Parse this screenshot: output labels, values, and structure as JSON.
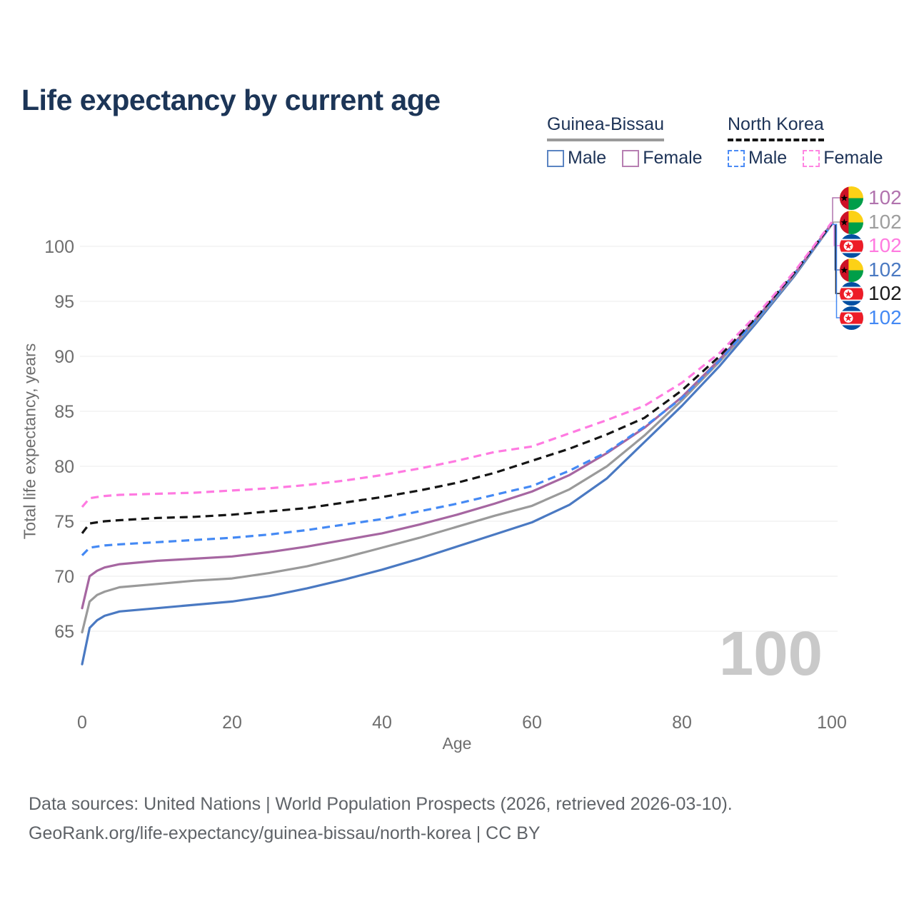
{
  "title": "Life expectancy by current age",
  "watermark": "100",
  "legend": {
    "groups": [
      {
        "country": "Guinea-Bissau",
        "line_style": "solid",
        "underline_color": "#9a9a9a",
        "items": [
          {
            "label": "Male",
            "color": "#5b84c2",
            "dashed": false
          },
          {
            "label": "Female",
            "color": "#b77fb2",
            "dashed": false
          }
        ]
      },
      {
        "country": "North Korea",
        "line_style": "dashed",
        "underline_color": "#161616",
        "items": [
          {
            "label": "Male",
            "color": "#4b8bf5",
            "dashed": true
          },
          {
            "label": "Female",
            "color": "#ff85e2",
            "dashed": true
          }
        ]
      }
    ]
  },
  "footer": {
    "line1": "Data sources: United Nations | World Population Prospects (2026, retrieved 2026-03-10).",
    "line2": "GeoRank.org/life-expectancy/guinea-bissau/north-korea | CC BY"
  },
  "chart_data": {
    "type": "line",
    "title": "Life expectancy by current age",
    "xlabel": "Age",
    "ylabel": "Total life expectancy, years",
    "xlim": [
      0,
      100
    ],
    "ylim": [
      61,
      103
    ],
    "xticks": [
      0,
      20,
      40,
      60,
      80,
      100
    ],
    "yticks": [
      65,
      70,
      75,
      80,
      85,
      90,
      95,
      100
    ],
    "grid": "horizontal",
    "legend_position": "top-right",
    "current_frame_age": "100",
    "x": [
      0,
      1,
      2,
      3,
      5,
      10,
      15,
      20,
      25,
      30,
      35,
      40,
      45,
      50,
      55,
      60,
      65,
      70,
      75,
      80,
      85,
      90,
      95,
      100
    ],
    "series": [
      {
        "name": "Guinea-Bissau Male",
        "color": "#4a79c2",
        "dashed": false,
        "values": [
          62.0,
          65.3,
          66.0,
          66.4,
          66.8,
          67.1,
          67.4,
          67.7,
          68.2,
          68.9,
          69.7,
          70.6,
          71.6,
          72.7,
          73.8,
          74.9,
          76.5,
          78.9,
          82.2,
          85.5,
          89.1,
          93.1,
          97.3,
          102.0
        ]
      },
      {
        "name": "Guinea-Bissau Total",
        "color": "#9a9a9a",
        "dashed": false,
        "values": [
          64.9,
          67.7,
          68.3,
          68.6,
          69.0,
          69.3,
          69.6,
          69.8,
          70.3,
          70.9,
          71.7,
          72.6,
          73.5,
          74.5,
          75.5,
          76.4,
          77.9,
          80.0,
          82.8,
          86.0,
          89.5,
          93.3,
          97.4,
          102.0
        ]
      },
      {
        "name": "Guinea-Bissau Female",
        "color": "#a666a1",
        "dashed": false,
        "values": [
          67.1,
          70.0,
          70.5,
          70.8,
          71.1,
          71.4,
          71.6,
          71.8,
          72.2,
          72.7,
          73.3,
          73.9,
          74.7,
          75.6,
          76.6,
          77.7,
          79.2,
          81.2,
          83.5,
          86.3,
          89.7,
          93.5,
          97.5,
          102.1
        ]
      },
      {
        "name": "North Korea Male",
        "color": "#4489f4",
        "dashed": true,
        "values": [
          71.9,
          72.6,
          72.7,
          72.8,
          72.9,
          73.1,
          73.3,
          73.5,
          73.8,
          74.2,
          74.7,
          75.2,
          75.9,
          76.6,
          77.4,
          78.2,
          79.6,
          81.3,
          83.6,
          86.2,
          89.6,
          93.4,
          97.5,
          102.0
        ]
      },
      {
        "name": "North Korea Total",
        "color": "#151515",
        "dashed": true,
        "values": [
          73.9,
          74.8,
          74.9,
          75.0,
          75.1,
          75.3,
          75.4,
          75.6,
          75.9,
          76.2,
          76.7,
          77.2,
          77.8,
          78.5,
          79.4,
          80.5,
          81.6,
          82.9,
          84.4,
          86.9,
          90.0,
          93.6,
          97.6,
          102.1
        ]
      },
      {
        "name": "North Korea Female",
        "color": "#ff7ae1",
        "dashed": true,
        "values": [
          76.3,
          77.1,
          77.2,
          77.3,
          77.4,
          77.5,
          77.6,
          77.8,
          78.0,
          78.3,
          78.7,
          79.2,
          79.8,
          80.5,
          81.3,
          81.8,
          83.0,
          84.2,
          85.5,
          87.6,
          90.3,
          93.8,
          97.7,
          102.2
        ]
      }
    ],
    "end_labels": [
      {
        "series": "Guinea-Bissau Female",
        "flag": "guinea-bissau",
        "value": "102",
        "color": "#b173ae"
      },
      {
        "series": "Guinea-Bissau Total",
        "flag": "guinea-bissau",
        "value": "102",
        "color": "#9e9e9e"
      },
      {
        "series": "North Korea Female",
        "flag": "north-korea",
        "value": "102",
        "color": "#ff7be0"
      },
      {
        "series": "Guinea-Bissau Male",
        "flag": "guinea-bissau",
        "value": "102",
        "color": "#4a79c2"
      },
      {
        "series": "North Korea Total",
        "flag": "north-korea",
        "value": "102",
        "color": "#1a1a1a"
      },
      {
        "series": "North Korea Male",
        "flag": "north-korea",
        "value": "102",
        "color": "#4489f4"
      }
    ]
  }
}
